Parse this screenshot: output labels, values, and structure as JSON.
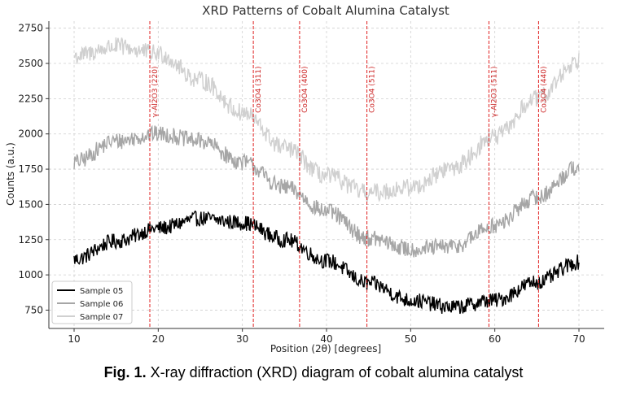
{
  "chart_data": {
    "type": "line",
    "title": "XRD Patterns of Cobalt Alumina Catalyst",
    "xlabel": "Position (2θ) [degrees]",
    "ylabel": "Counts (a.u.)",
    "xlim": [
      7,
      73
    ],
    "ylim": [
      620,
      2800
    ],
    "xticks": [
      10,
      20,
      30,
      40,
      50,
      60,
      70
    ],
    "yticks": [
      750,
      1000,
      1250,
      1500,
      1750,
      2000,
      2250,
      2500,
      2750
    ],
    "grid": true,
    "legend_position": "bottom-left",
    "series": [
      {
        "name": "Sample 05",
        "color": "#000000",
        "x": [
          10,
          15,
          20,
          25,
          30,
          35,
          40,
          45,
          50,
          55,
          60,
          65,
          70
        ],
        "y": [
          1110,
          1240,
          1330,
          1400,
          1370,
          1250,
          1100,
          940,
          820,
          770,
          820,
          950,
          1090
        ],
        "noise": 55
      },
      {
        "name": "Sample 06",
        "color": "#a6a6a6",
        "x": [
          10,
          15,
          20,
          25,
          30,
          35,
          40,
          45,
          50,
          55,
          60,
          65,
          70
        ],
        "y": [
          1800,
          1950,
          2000,
          1950,
          1800,
          1620,
          1450,
          1260,
          1180,
          1200,
          1350,
          1550,
          1770
        ],
        "noise": 60
      },
      {
        "name": "Sample 07",
        "color": "#d0d0d0",
        "x": [
          10,
          15,
          20,
          25,
          30,
          35,
          40,
          45,
          50,
          55,
          60,
          65,
          70
        ],
        "y": [
          2550,
          2620,
          2570,
          2380,
          2150,
          1900,
          1700,
          1580,
          1620,
          1760,
          1980,
          2250,
          2520
        ],
        "noise": 65
      }
    ],
    "annotations": [
      {
        "x": 19.0,
        "label": "γ-Al2O3 (220)"
      },
      {
        "x": 31.3,
        "label": "Co3O4 (311)"
      },
      {
        "x": 36.8,
        "label": "Co3O4 (400)"
      },
      {
        "x": 44.8,
        "label": "Co3O4 (511)"
      },
      {
        "x": 59.3,
        "label": "γ-Al2O3 (511)"
      },
      {
        "x": 65.2,
        "label": "Co3O4 (440)"
      }
    ]
  },
  "caption": {
    "prefix": "Fig. 1.",
    "text": " X-ray diffraction (XRD) diagram of cobalt alumina catalyst"
  }
}
